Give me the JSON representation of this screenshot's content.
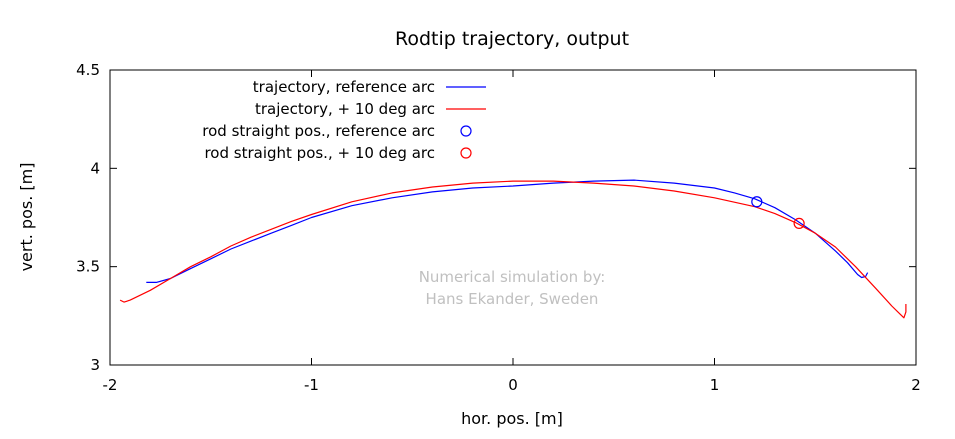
{
  "chart_data": {
    "type": "line",
    "title": "Rodtip trajectory, output",
    "xlabel": "hor. pos. [m]",
    "ylabel": "vert. pos. [m]",
    "xlim": [
      -2,
      2
    ],
    "ylim": [
      3,
      4.5
    ],
    "xticks": [
      {
        "value": -2,
        "label": "-2"
      },
      {
        "value": -1,
        "label": "-1"
      },
      {
        "value": 0,
        "label": "0"
      },
      {
        "value": 1,
        "label": "1"
      },
      {
        "value": 2,
        "label": "2"
      }
    ],
    "yticks": [
      {
        "value": 3,
        "label": "3"
      },
      {
        "value": 3.5,
        "label": "3.5"
      },
      {
        "value": 4,
        "label": "4"
      },
      {
        "value": 4.5,
        "label": "4.5"
      }
    ],
    "grid": false,
    "legend_position": "top-left",
    "annotation": [
      "Numerical simulation by:",
      "Hans Ekander, Sweden"
    ],
    "series": [
      {
        "name": "trajectory, reference arc",
        "kind": "line",
        "color": "#0000ff",
        "points": [
          [
            -1.82,
            3.42
          ],
          [
            -1.77,
            3.42
          ],
          [
            -1.7,
            3.44
          ],
          [
            -1.6,
            3.49
          ],
          [
            -1.5,
            3.54
          ],
          [
            -1.4,
            3.59
          ],
          [
            -1.3,
            3.63
          ],
          [
            -1.2,
            3.67
          ],
          [
            -1.1,
            3.71
          ],
          [
            -1.0,
            3.75
          ],
          [
            -0.8,
            3.81
          ],
          [
            -0.6,
            3.85
          ],
          [
            -0.4,
            3.88
          ],
          [
            -0.2,
            3.9
          ],
          [
            0.0,
            3.91
          ],
          [
            0.2,
            3.925
          ],
          [
            0.4,
            3.935
          ],
          [
            0.6,
            3.94
          ],
          [
            0.8,
            3.925
          ],
          [
            1.0,
            3.9
          ],
          [
            1.1,
            3.875
          ],
          [
            1.2,
            3.845
          ],
          [
            1.3,
            3.8
          ],
          [
            1.4,
            3.74
          ],
          [
            1.5,
            3.67
          ],
          [
            1.6,
            3.58
          ],
          [
            1.66,
            3.52
          ],
          [
            1.71,
            3.46
          ],
          [
            1.73,
            3.445
          ],
          [
            1.75,
            3.45
          ],
          [
            1.76,
            3.47
          ]
        ]
      },
      {
        "name": "trajectory, + 10 deg arc",
        "kind": "line",
        "color": "#ff0000",
        "points": [
          [
            -1.95,
            3.33
          ],
          [
            -1.93,
            3.32
          ],
          [
            -1.9,
            3.33
          ],
          [
            -1.8,
            3.38
          ],
          [
            -1.7,
            3.44
          ],
          [
            -1.6,
            3.5
          ],
          [
            -1.5,
            3.55
          ],
          [
            -1.4,
            3.605
          ],
          [
            -1.3,
            3.65
          ],
          [
            -1.2,
            3.69
          ],
          [
            -1.1,
            3.73
          ],
          [
            -1.0,
            3.765
          ],
          [
            -0.8,
            3.83
          ],
          [
            -0.6,
            3.875
          ],
          [
            -0.4,
            3.905
          ],
          [
            -0.2,
            3.925
          ],
          [
            0.0,
            3.935
          ],
          [
            0.2,
            3.935
          ],
          [
            0.4,
            3.925
          ],
          [
            0.6,
            3.91
          ],
          [
            0.8,
            3.885
          ],
          [
            1.0,
            3.85
          ],
          [
            1.2,
            3.805
          ],
          [
            1.3,
            3.77
          ],
          [
            1.4,
            3.725
          ],
          [
            1.5,
            3.67
          ],
          [
            1.6,
            3.6
          ],
          [
            1.7,
            3.5
          ],
          [
            1.8,
            3.39
          ],
          [
            1.88,
            3.3
          ],
          [
            1.92,
            3.26
          ],
          [
            1.94,
            3.24
          ],
          [
            1.95,
            3.27
          ],
          [
            1.95,
            3.31
          ]
        ]
      },
      {
        "name": "rod straight pos., reference arc",
        "kind": "marker",
        "color": "#0000ff",
        "points": [
          [
            1.21,
            3.83
          ]
        ]
      },
      {
        "name": "rod straight pos., + 10 deg arc",
        "kind": "marker",
        "color": "#ff0000",
        "points": [
          [
            1.42,
            3.72
          ]
        ]
      }
    ]
  }
}
